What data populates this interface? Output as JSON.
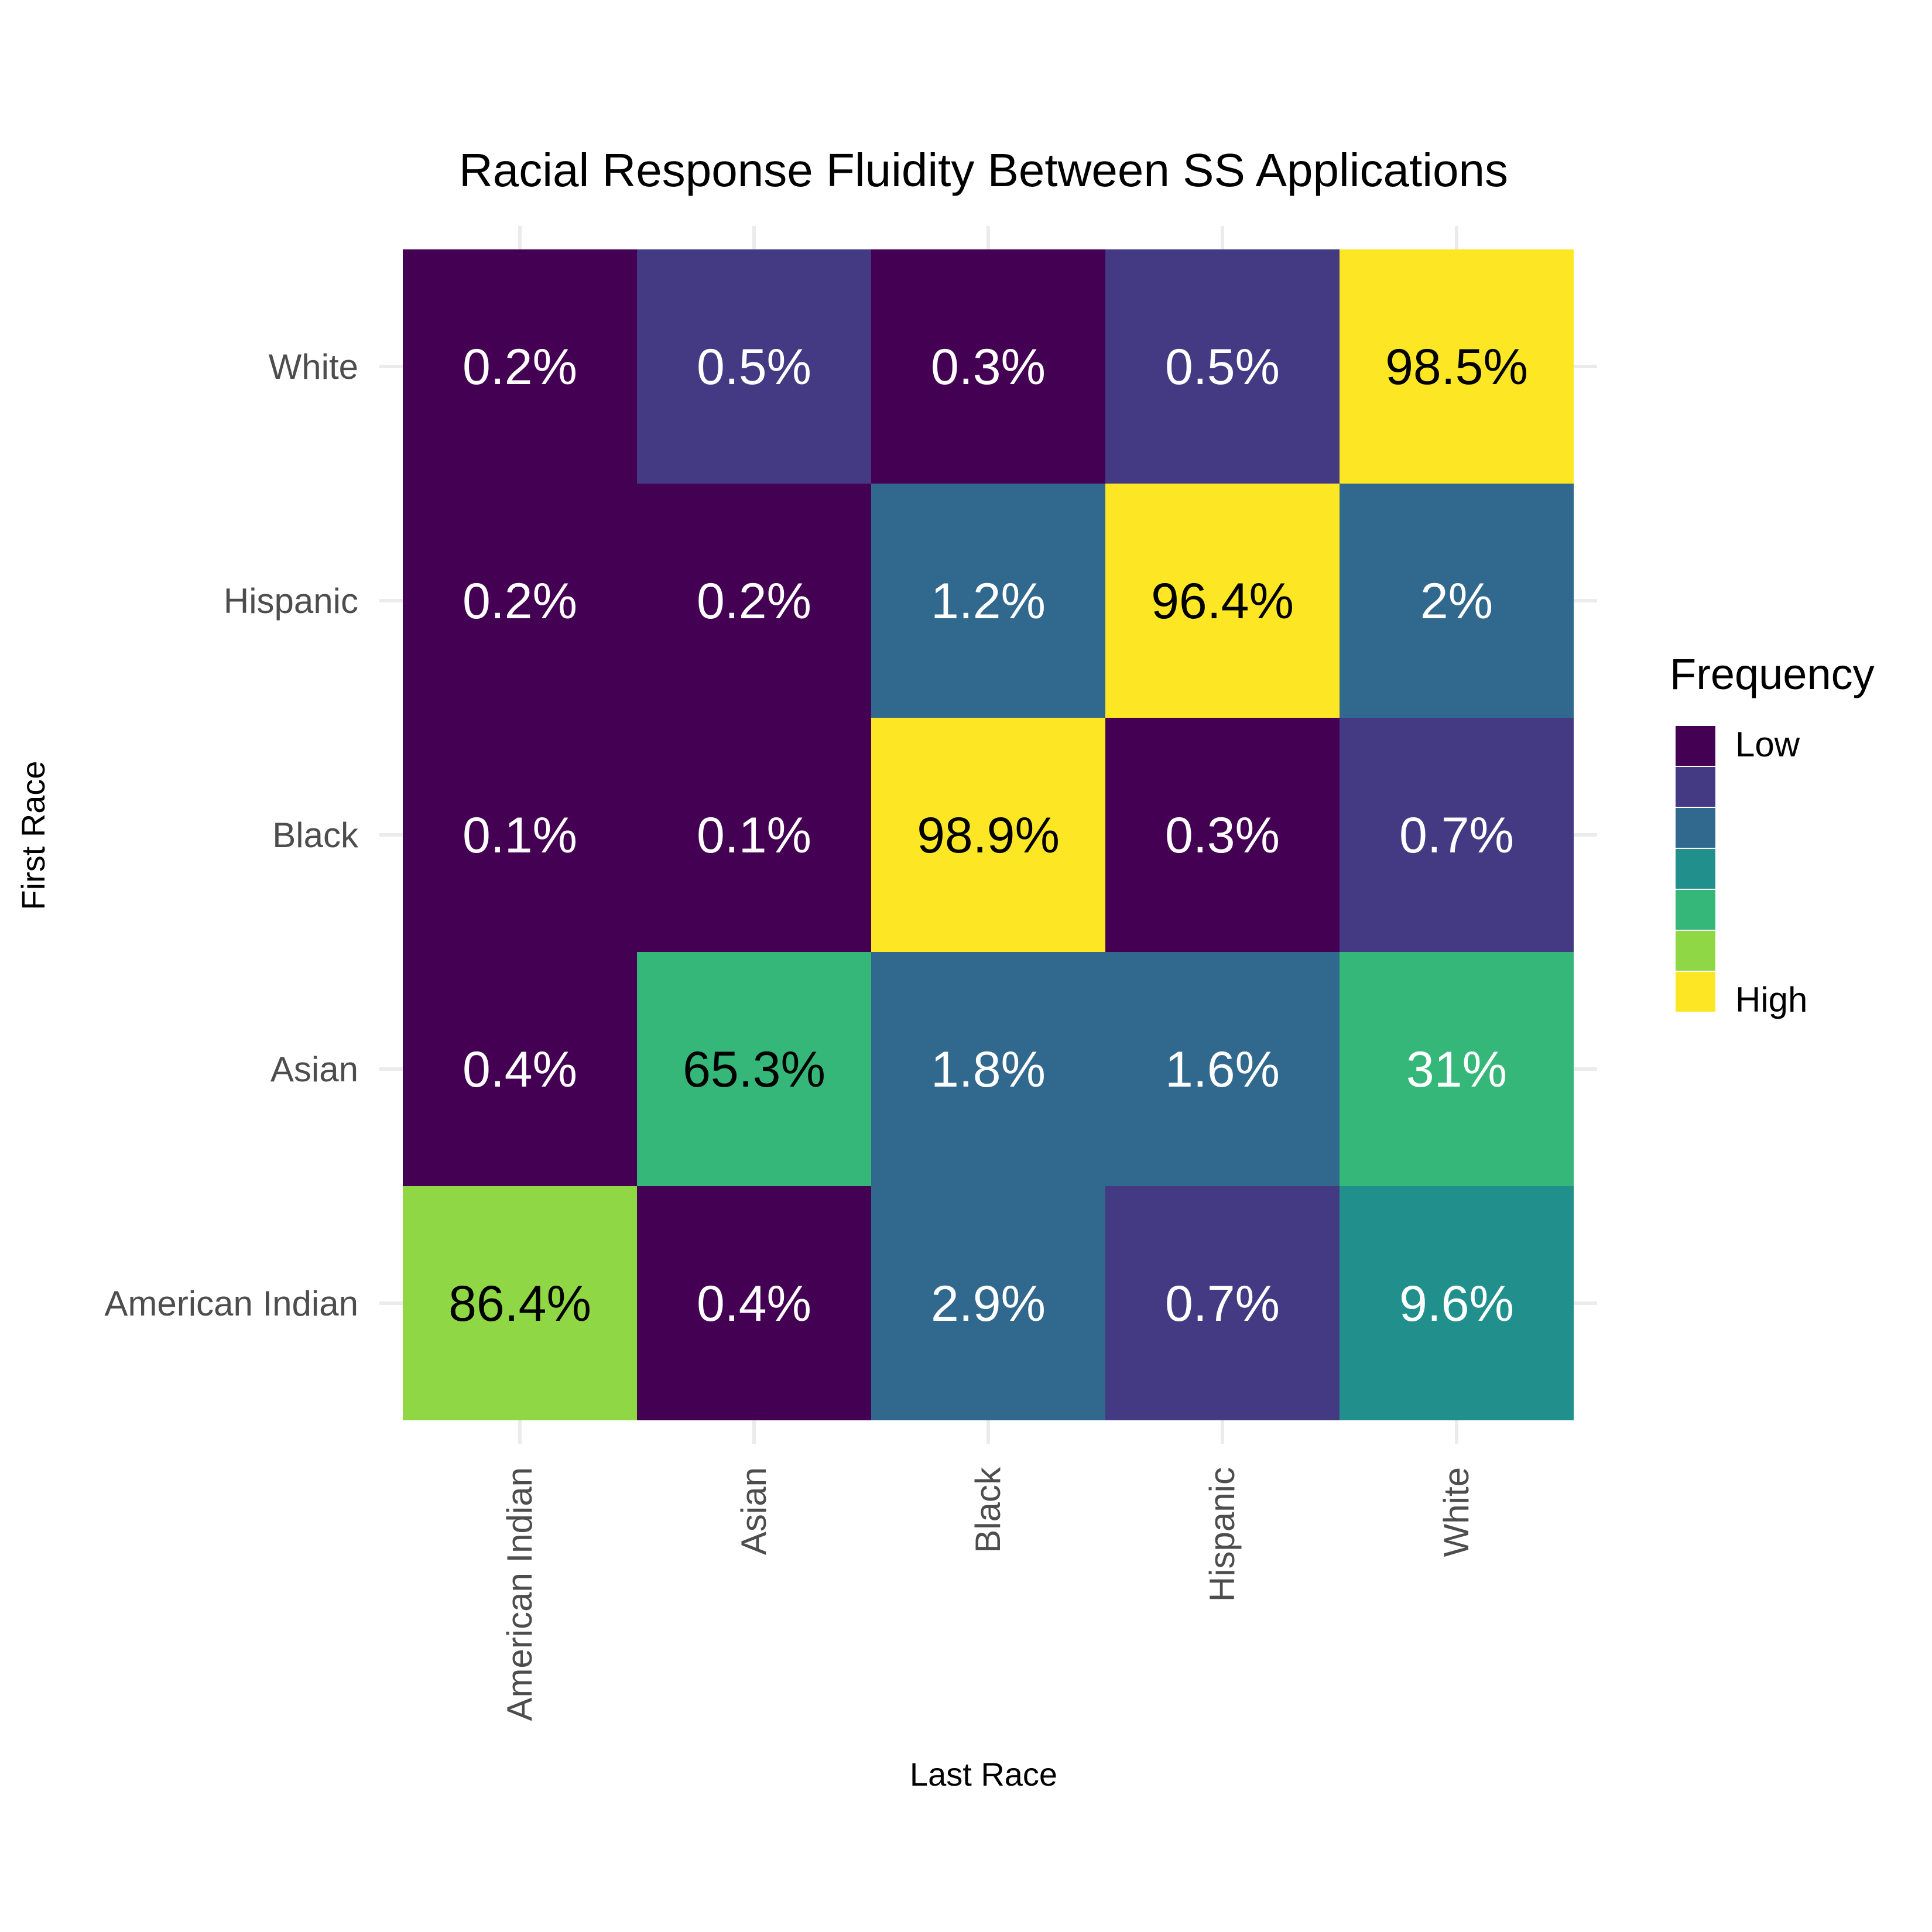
{
  "chart_data": {
    "type": "heatmap",
    "title": "Racial Response Fluidity Between SS Applications",
    "xlabel": "Last Race",
    "ylabel": "First Race",
    "x_categories": [
      "American Indian",
      "Asian",
      "Black",
      "Hispanic",
      "White"
    ],
    "y_categories": [
      "American Indian",
      "Asian",
      "Black",
      "Hispanic",
      "White"
    ],
    "cells": [
      {
        "first": "White",
        "last": "American Indian",
        "value": 0.2,
        "label": "0.2%",
        "level": 1
      },
      {
        "first": "White",
        "last": "Asian",
        "value": 0.5,
        "label": "0.5%",
        "level": 2
      },
      {
        "first": "White",
        "last": "Black",
        "value": 0.3,
        "label": "0.3%",
        "level": 1
      },
      {
        "first": "White",
        "last": "Hispanic",
        "value": 0.5,
        "label": "0.5%",
        "level": 2
      },
      {
        "first": "White",
        "last": "White",
        "value": 98.5,
        "label": "98.5%",
        "level": 7
      },
      {
        "first": "Hispanic",
        "last": "American Indian",
        "value": 0.2,
        "label": "0.2%",
        "level": 1
      },
      {
        "first": "Hispanic",
        "last": "Asian",
        "value": 0.2,
        "label": "0.2%",
        "level": 1
      },
      {
        "first": "Hispanic",
        "last": "Black",
        "value": 1.2,
        "label": "1.2%",
        "level": 3
      },
      {
        "first": "Hispanic",
        "last": "Hispanic",
        "value": 96.4,
        "label": "96.4%",
        "level": 7
      },
      {
        "first": "Hispanic",
        "last": "White",
        "value": 2,
        "label": "2%",
        "level": 3
      },
      {
        "first": "Black",
        "last": "American Indian",
        "value": 0.1,
        "label": "0.1%",
        "level": 1
      },
      {
        "first": "Black",
        "last": "Asian",
        "value": 0.1,
        "label": "0.1%",
        "level": 1
      },
      {
        "first": "Black",
        "last": "Black",
        "value": 98.9,
        "label": "98.9%",
        "level": 7
      },
      {
        "first": "Black",
        "last": "Hispanic",
        "value": 0.3,
        "label": "0.3%",
        "level": 1
      },
      {
        "first": "Black",
        "last": "White",
        "value": 0.7,
        "label": "0.7%",
        "level": 2
      },
      {
        "first": "Asian",
        "last": "American Indian",
        "value": 0.4,
        "label": "0.4%",
        "level": 1
      },
      {
        "first": "Asian",
        "last": "Asian",
        "value": 65.3,
        "label": "65.3%",
        "level": 5
      },
      {
        "first": "Asian",
        "last": "Black",
        "value": 1.8,
        "label": "1.8%",
        "level": 3
      },
      {
        "first": "Asian",
        "last": "Hispanic",
        "value": 1.6,
        "label": "1.6%",
        "level": 3
      },
      {
        "first": "Asian",
        "last": "White",
        "value": 31,
        "label": "31%",
        "level": 5
      },
      {
        "first": "American Indian",
        "last": "American Indian",
        "value": 86.4,
        "label": "86.4%",
        "level": 6
      },
      {
        "first": "American Indian",
        "last": "Asian",
        "value": 0.4,
        "label": "0.4%",
        "level": 1
      },
      {
        "first": "American Indian",
        "last": "Black",
        "value": 2.9,
        "label": "2.9%",
        "level": 3
      },
      {
        "first": "American Indian",
        "last": "Hispanic",
        "value": 0.7,
        "label": "0.7%",
        "level": 2
      },
      {
        "first": "American Indian",
        "last": "White",
        "value": 9.6,
        "label": "9.6%",
        "level": 4
      }
    ],
    "legend": {
      "title": "Frequency",
      "position": "right",
      "low_label": "Low",
      "high_label": "High",
      "colors": [
        "#440154",
        "#443a83",
        "#31688e",
        "#21908d",
        "#35b779",
        "#8fd744",
        "#fde725"
      ]
    },
    "grid": true
  }
}
